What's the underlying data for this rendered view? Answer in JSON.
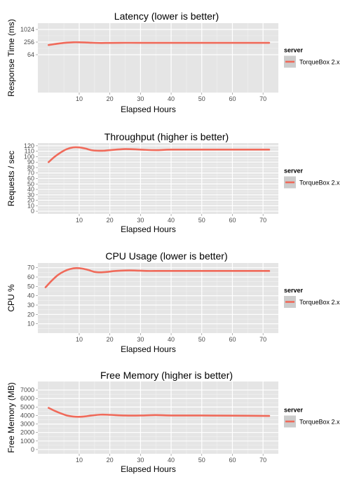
{
  "colors": {
    "panel": "#e5e5e5",
    "grid_major": "#ffffff",
    "grid_minor": "#f2f2f2",
    "series": "#f06a5a",
    "legend_key_bg": "#cccccc"
  },
  "legend": {
    "title": "server",
    "label": "TorqueBox 2.x",
    "placement": "right"
  },
  "chart_data": [
    {
      "type": "line",
      "title": "Latency (lower is better)",
      "xlabel": "Elapsed Hours",
      "ylabel": "Response Time (ms)",
      "ylog": true,
      "xlim": [
        -3.5,
        75
      ],
      "ylim": [
        1,
        2048
      ],
      "xticks": [
        10,
        20,
        30,
        40,
        50,
        60,
        70
      ],
      "yticks": [
        64,
        256,
        1024
      ],
      "series": [
        {
          "name": "TorqueBox 2.x",
          "x": [
            0,
            2,
            4,
            6,
            8,
            10,
            12,
            14,
            17,
            20,
            25,
            30,
            40,
            50,
            60,
            72
          ],
          "y": [
            185,
            205,
            225,
            240,
            250,
            250,
            245,
            238,
            232,
            234,
            237,
            236,
            236,
            236,
            236,
            236
          ]
        }
      ]
    },
    {
      "type": "line",
      "title": "Throughput (higher is better)",
      "xlabel": "Elapsed Hours",
      "ylabel": "Requests / sec",
      "ylog": false,
      "xlim": [
        -3.5,
        75
      ],
      "ylim": [
        -5,
        125
      ],
      "xticks": [
        10,
        20,
        30,
        40,
        50,
        60,
        70
      ],
      "yticks": [
        0,
        10,
        20,
        30,
        40,
        50,
        60,
        70,
        80,
        90,
        100,
        110,
        120
      ],
      "series": [
        {
          "name": "TorqueBox 2.x",
          "x": [
            0,
            2,
            4,
            6,
            8,
            10,
            12,
            14,
            16,
            18,
            20,
            25,
            30,
            35,
            40,
            50,
            60,
            72
          ],
          "y": [
            90,
            100,
            108,
            114,
            117,
            117,
            115,
            112,
            111,
            111,
            112,
            114,
            113,
            112,
            113,
            113,
            113,
            113
          ]
        }
      ]
    },
    {
      "type": "line",
      "title": "CPU Usage (lower is better)",
      "xlabel": "Elapsed Hours",
      "ylabel": "CPU %",
      "ylog": false,
      "xlim": [
        -3.5,
        75
      ],
      "ylim": [
        0,
        75
      ],
      "xticks": [
        10,
        20,
        30,
        40,
        50,
        60,
        70
      ],
      "yticks": [
        10,
        20,
        30,
        40,
        50,
        60,
        70
      ],
      "series": [
        {
          "name": "TorqueBox 2.x",
          "x": [
            -1,
            1,
            3,
            5,
            7,
            9,
            11,
            13,
            15,
            17,
            19,
            22,
            25,
            28,
            32,
            36,
            40,
            50,
            60,
            72
          ],
          "y": [
            49,
            56,
            62,
            66,
            68.5,
            69.5,
            69,
            67.5,
            65.5,
            65,
            65.5,
            66.5,
            67,
            67,
            66.5,
            66.5,
            66.5,
            66.5,
            66.5,
            66.5
          ]
        }
      ]
    },
    {
      "type": "line",
      "title": "Free Memory (higher is better)",
      "xlabel": "Elapsed Hours",
      "ylabel": "Free Memory (MB)",
      "ylog": false,
      "xlim": [
        -3.5,
        75
      ],
      "ylim": [
        -500,
        8000
      ],
      "xticks": [
        10,
        20,
        30,
        40,
        50,
        60,
        70
      ],
      "yticks": [
        0,
        1000,
        2000,
        3000,
        4000,
        5000,
        6000,
        7000
      ],
      "series": [
        {
          "name": "TorqueBox 2.x",
          "x": [
            0,
            2,
            4,
            6,
            8,
            10,
            12,
            14,
            17,
            20,
            25,
            30,
            35,
            40,
            50,
            60,
            72
          ],
          "y": [
            4900,
            4550,
            4250,
            4000,
            3880,
            3850,
            3900,
            4000,
            4100,
            4080,
            4000,
            4000,
            4050,
            4000,
            4000,
            3980,
            3950
          ]
        }
      ]
    }
  ]
}
